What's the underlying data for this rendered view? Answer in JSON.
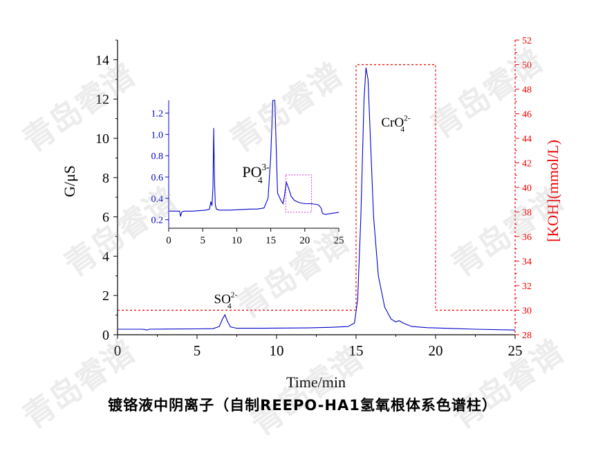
{
  "watermark": "青岛睿谱",
  "caption": "镀铬液中阴离子（自制REEPO-HA1氢氧根体系色谱柱）",
  "colors": {
    "signal": "#0000cc",
    "eluent": "#ee0000",
    "axis": "#000000",
    "highlight": "#cc33cc"
  },
  "chart_data": [
    {
      "type": "line",
      "xlabel": "Time/min",
      "ylabel": "G/μS",
      "y2label": "[KOH](mmol/L)",
      "xlim": [
        0,
        25
      ],
      "ylim": [
        0,
        15
      ],
      "y2lim": [
        28,
        52
      ],
      "xticks": [
        0,
        5,
        10,
        15,
        20,
        25
      ],
      "yticks": [
        0,
        2,
        4,
        6,
        8,
        10,
        12,
        14
      ],
      "y2ticks": [
        28,
        30,
        32,
        34,
        36,
        38,
        40,
        42,
        44,
        46,
        48,
        50,
        52
      ],
      "grid": false,
      "annotations": [
        {
          "text": "SO",
          "sup": "2-",
          "sub": "4",
          "x": 6.8,
          "y": 1.6
        },
        {
          "text": "CrO",
          "sup": "2-",
          "sub": "4",
          "x": 17.5,
          "y": 10.6
        }
      ],
      "series": [
        {
          "axis": "left",
          "style": "solid",
          "x": [
            0,
            1.5,
            1.7,
            1.85,
            2.0,
            3.0,
            5.0,
            6.0,
            6.4,
            6.6,
            6.75,
            6.9,
            7.1,
            7.5,
            9.0,
            12.0,
            13.5,
            14.5,
            14.9,
            15.1,
            15.3,
            15.5,
            15.62,
            15.75,
            15.9,
            16.1,
            16.4,
            16.8,
            17.2,
            17.5,
            17.7,
            18.0,
            18.5,
            19.5,
            21.0,
            22.5,
            25.0
          ],
          "y": [
            0.28,
            0.28,
            0.27,
            0.24,
            0.28,
            0.29,
            0.3,
            0.31,
            0.42,
            0.8,
            1.02,
            0.7,
            0.4,
            0.33,
            0.33,
            0.35,
            0.38,
            0.42,
            0.6,
            1.8,
            6.0,
            12.0,
            13.6,
            13.0,
            10.0,
            6.0,
            3.0,
            1.4,
            0.8,
            0.65,
            0.72,
            0.58,
            0.42,
            0.36,
            0.32,
            0.28,
            0.24
          ]
        },
        {
          "axis": "right",
          "style": "dashed",
          "x": [
            0,
            15,
            15,
            20,
            20,
            25
          ],
          "y": [
            30,
            30,
            50,
            50,
            30,
            30
          ]
        }
      ]
    },
    {
      "type": "line",
      "inset": true,
      "xlim": [
        0,
        25
      ],
      "ylim": [
        0.12,
        1.32
      ],
      "xticks": [
        0,
        5,
        10,
        15,
        20,
        25
      ],
      "yticks": [
        0.2,
        0.4,
        0.6,
        0.8,
        1.0,
        1.2
      ],
      "ytick_labels": [
        "0.2",
        "0.4",
        "0.6",
        "0.8",
        "1.0",
        "1.2"
      ],
      "annotations": [
        {
          "text": "PO",
          "sup": "3-",
          "sub": "4",
          "x": 12.8,
          "y": 0.6
        }
      ],
      "highlight_box": {
        "x": [
          17.2,
          21.0
        ],
        "y": [
          0.27,
          0.62
        ]
      },
      "series": [
        {
          "style": "solid",
          "x": [
            0,
            1.6,
            1.75,
            1.9,
            2.2,
            3.5,
            5.5,
            6.0,
            6.2,
            6.35,
            6.5,
            6.62,
            6.72,
            6.85,
            7.0,
            7.4,
            9.0,
            12.0,
            13.0,
            14.0,
            14.6,
            15.0,
            15.3,
            15.6,
            16.0,
            16.5,
            16.8,
            17.0,
            17.3,
            17.6,
            18.0,
            18.5,
            19.2,
            20.0,
            21.0,
            22.0,
            22.4,
            22.6,
            23.0,
            25.0
          ],
          "y": [
            0.28,
            0.28,
            0.23,
            0.27,
            0.28,
            0.28,
            0.29,
            0.3,
            0.37,
            0.33,
            0.5,
            1.06,
            0.6,
            0.34,
            0.3,
            0.29,
            0.29,
            0.3,
            0.3,
            0.31,
            0.4,
            0.8,
            1.32,
            1.32,
            0.45,
            0.38,
            0.35,
            0.42,
            0.55,
            0.5,
            0.42,
            0.38,
            0.36,
            0.35,
            0.35,
            0.34,
            0.31,
            0.26,
            0.25,
            0.27
          ]
        }
      ]
    }
  ]
}
